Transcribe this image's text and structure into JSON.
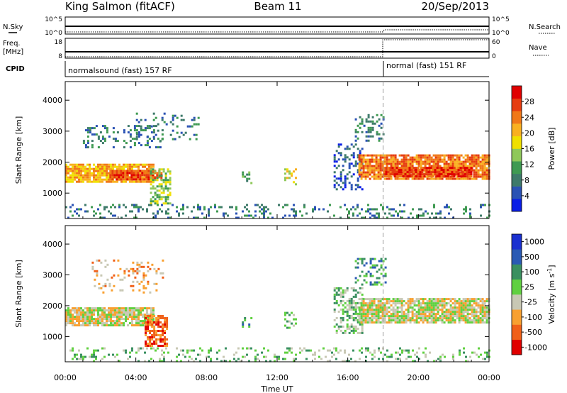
{
  "header": {
    "station": "King Salmon (fitACF)",
    "beam": "Beam 11",
    "date": "20/Sep/2013"
  },
  "summary": {
    "nsky_label": "N.Sky",
    "nsearch_label": "N.Search",
    "freq_label_1": "Freq.",
    "freq_label_2": "[MHz]",
    "nave_label": "Nave",
    "cpid_label": "CPID",
    "noise_ticks": [
      "10^5",
      "10^0"
    ],
    "freq_ticks": [
      "18",
      "8"
    ],
    "nave_ticks": [
      "60",
      "0"
    ],
    "cpid_segments": [
      {
        "name": "normalsound (fast) 157 RF",
        "start_hour": 0,
        "end_hour": 18
      },
      {
        "name": "normal (fast) 151 RF",
        "start_hour": 18,
        "end_hour": 24
      }
    ]
  },
  "colors": {
    "power": [
      "#0a1ee6",
      "#2a52b4",
      "#3e7a6a",
      "#3f9a52",
      "#8fc85a",
      "#f0e000",
      "#f9b020",
      "#f07818",
      "#e63c10",
      "#e00000"
    ],
    "velocity": [
      "#e00000",
      "#f06018",
      "#f8a030",
      "#c8c8b4",
      "#60d040",
      "#3a9060",
      "#2a5ab4",
      "#1a30d0"
    ]
  },
  "chart_data": [
    {
      "type": "heatmap",
      "name": "power",
      "xlabel": "Time UT",
      "ylabel": "Slant Range [km]",
      "colorbar_label": "Power [dB]",
      "colorbar_ticks": [
        "28",
        "24",
        "20",
        "16",
        "12",
        "8",
        "4"
      ],
      "xlim": [
        0,
        24
      ],
      "ylim": [
        180,
        4600
      ],
      "x_ticks": [
        "00:00",
        "04:00",
        "08:00",
        "12:00",
        "16:00",
        "20:00",
        "00:00"
      ],
      "y_ticks": [
        "1000",
        "2000",
        "3000",
        "4000"
      ],
      "regions": [
        {
          "t0": 0.0,
          "t1": 5.0,
          "r0": 1350,
          "r1": 1950,
          "dens": 0.85,
          "c": 6
        },
        {
          "t0": 2.5,
          "t1": 5.5,
          "r0": 1450,
          "r1": 1750,
          "dens": 0.9,
          "c": 8
        },
        {
          "t0": 4.8,
          "t1": 6.0,
          "r0": 700,
          "r1": 1800,
          "dens": 0.55,
          "c": 4
        },
        {
          "t0": 1.0,
          "t1": 5.5,
          "r0": 2500,
          "r1": 3200,
          "dens": 0.25,
          "c": 2
        },
        {
          "t0": 4.0,
          "t1": 7.5,
          "r0": 2700,
          "r1": 3600,
          "dens": 0.12,
          "c": 2
        },
        {
          "t0": 10.0,
          "t1": 10.6,
          "r0": 1300,
          "r1": 1700,
          "dens": 0.35,
          "c": 3
        },
        {
          "t0": 12.4,
          "t1": 13.1,
          "r0": 1300,
          "r1": 1800,
          "dens": 0.4,
          "c": 5
        },
        {
          "t0": 15.2,
          "t1": 16.8,
          "r0": 1100,
          "r1": 2600,
          "dens": 0.35,
          "c": 1
        },
        {
          "t0": 16.4,
          "t1": 18.2,
          "r0": 2700,
          "r1": 3550,
          "dens": 0.3,
          "c": 2
        },
        {
          "t0": 16.6,
          "t1": 24.0,
          "r0": 1450,
          "r1": 2250,
          "dens": 0.85,
          "c": 7
        },
        {
          "t0": 18.0,
          "t1": 23.0,
          "r0": 1550,
          "r1": 1850,
          "dens": 0.9,
          "c": 8
        },
        {
          "t0": 0.0,
          "t1": 24.0,
          "r0": 200,
          "r1": 650,
          "dens": 0.2,
          "c": 2
        }
      ]
    },
    {
      "type": "heatmap",
      "name": "velocity",
      "xlabel": "Time UT",
      "ylabel": "Slant Range [km]",
      "colorbar_label": "Velocity [m s^-1]",
      "colorbar_ticks": [
        "1000",
        "500",
        "100",
        "25",
        "-25",
        "-100",
        "-500",
        "-1000"
      ],
      "xlim": [
        0,
        24
      ],
      "ylim": [
        180,
        4600
      ],
      "x_ticks": [
        "00:00",
        "04:00",
        "08:00",
        "12:00",
        "16:00",
        "20:00",
        "00:00"
      ],
      "y_ticks": [
        "1000",
        "2000",
        "3000",
        "4000"
      ],
      "regions": [
        {
          "t0": 0.0,
          "t1": 5.0,
          "r0": 1350,
          "r1": 1950,
          "dens": 0.85,
          "c": 3
        },
        {
          "t0": 4.5,
          "t1": 5.8,
          "r0": 700,
          "r1": 1700,
          "dens": 0.7,
          "c": 1
        },
        {
          "t0": 1.5,
          "t1": 5.5,
          "r0": 2400,
          "r1": 3500,
          "dens": 0.2,
          "c": 2
        },
        {
          "t0": 10.0,
          "t1": 10.6,
          "r0": 1300,
          "r1": 1700,
          "dens": 0.3,
          "c": 5
        },
        {
          "t0": 12.4,
          "t1": 13.1,
          "r0": 1300,
          "r1": 1800,
          "dens": 0.4,
          "c": 4
        },
        {
          "t0": 15.2,
          "t1": 16.8,
          "r0": 1100,
          "r1": 2600,
          "dens": 0.45,
          "c": 4
        },
        {
          "t0": 16.4,
          "t1": 18.2,
          "r0": 2700,
          "r1": 3550,
          "dens": 0.3,
          "c": 5
        },
        {
          "t0": 16.6,
          "t1": 24.0,
          "r0": 1450,
          "r1": 2250,
          "dens": 0.85,
          "c": 3
        },
        {
          "t0": 0.0,
          "t1": 24.0,
          "r0": 200,
          "r1": 650,
          "dens": 0.2,
          "c": 4
        }
      ]
    }
  ]
}
